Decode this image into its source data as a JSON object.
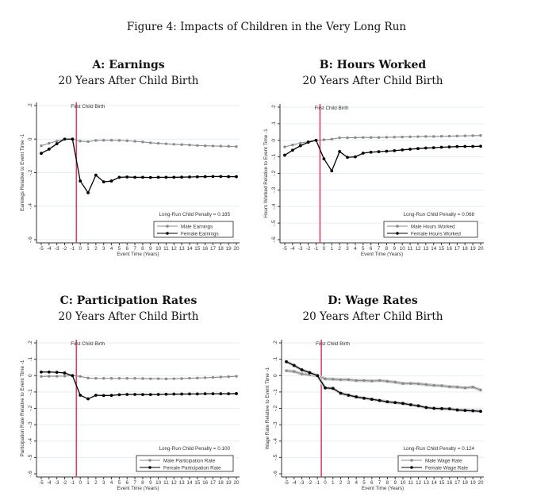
{
  "figure_title": "Figure 4: Impacts of Children in the Very Long Run",
  "chart_data": [
    {
      "id": "A",
      "type": "line",
      "title": "A: Earnings",
      "subtitle": "20 Years After Child Birth",
      "xlabel": "Event Time (Years)",
      "ylabel": "Earnings Relative to Event Time -1",
      "x": [
        -5,
        -4,
        -3,
        -2,
        -1,
        0,
        1,
        2,
        3,
        4,
        5,
        6,
        7,
        8,
        9,
        10,
        11,
        12,
        13,
        14,
        15,
        16,
        17,
        18,
        19,
        20
      ],
      "xlim": [
        -5,
        20
      ],
      "ylim": [
        -0.6,
        0.2
      ],
      "yticks": [
        0.2,
        0,
        -0.2,
        -0.4,
        -0.6
      ],
      "ytick_labels": [
        ".2",
        "0",
        "-.2",
        "-.4",
        "-.6"
      ],
      "grid": true,
      "event_line": {
        "x": -0.5,
        "label": "First Child Birth",
        "color": "#d9436b"
      },
      "annotation": "Long-Run Child Penalty = 0.185",
      "legend_position": "bottom-right",
      "series": [
        {
          "name": "Male Earnings",
          "color": "#8a8a8a",
          "band": false,
          "values": [
            -0.04,
            -0.025,
            -0.012,
            0.0,
            0.0,
            -0.012,
            -0.015,
            -0.008,
            -0.007,
            -0.007,
            -0.008,
            -0.01,
            -0.013,
            -0.017,
            -0.022,
            -0.025,
            -0.028,
            -0.031,
            -0.033,
            -0.035,
            -0.038,
            -0.04,
            -0.041,
            -0.042,
            -0.043,
            -0.045
          ]
        },
        {
          "name": "Female Earnings",
          "color": "#000000",
          "band": false,
          "values": [
            -0.085,
            -0.06,
            -0.028,
            0.0,
            0.0,
            -0.25,
            -0.32,
            -0.215,
            -0.255,
            -0.25,
            -0.228,
            -0.226,
            -0.228,
            -0.228,
            -0.229,
            -0.228,
            -0.228,
            -0.228,
            -0.227,
            -0.226,
            -0.225,
            -0.224,
            -0.223,
            -0.223,
            -0.224,
            -0.224
          ]
        }
      ]
    },
    {
      "id": "B",
      "type": "line",
      "title": "B: Hours Worked",
      "subtitle": "20 Years After Child Birth",
      "xlabel": "Event Time (Years)",
      "ylabel": "Hours Worked Relative to Event Time -1",
      "x": [
        -5,
        -4,
        -3,
        -2,
        -1,
        0,
        1,
        2,
        3,
        4,
        5,
        6,
        7,
        8,
        9,
        10,
        11,
        12,
        13,
        14,
        15,
        16,
        17,
        18,
        19,
        20
      ],
      "xlim": [
        -5,
        20
      ],
      "ylim": [
        -0.6,
        0.2
      ],
      "yticks": [
        0.2,
        0.1,
        0,
        -0.1,
        -0.2,
        -0.3,
        -0.4,
        -0.5,
        -0.6
      ],
      "ytick_labels": [
        ".2",
        ".1",
        "0",
        "-.1",
        "-.2",
        "-.3",
        "-.4",
        "-.5",
        "-.6"
      ],
      "grid": true,
      "event_line": {
        "x": -0.5,
        "label": "First Child Birth",
        "color": "#d9436b"
      },
      "annotation": "Long-Run Child Penalty = 0.068",
      "legend_position": "bottom-right",
      "series": [
        {
          "name": "Male Hours Worked",
          "color": "#8a8a8a",
          "band": false,
          "values": [
            -0.04,
            -0.028,
            -0.017,
            -0.008,
            0.0,
            0.003,
            0.007,
            0.015,
            0.015,
            0.016,
            0.017,
            0.017,
            0.017,
            0.018,
            0.019,
            0.02,
            0.021,
            0.022,
            0.023,
            0.023,
            0.024,
            0.025,
            0.026,
            0.027,
            0.028,
            0.029
          ]
        },
        {
          "name": "Female Hours Worked",
          "color": "#000000",
          "band": false,
          "values": [
            -0.09,
            -0.06,
            -0.033,
            -0.012,
            0.0,
            -0.112,
            -0.185,
            -0.068,
            -0.103,
            -0.1,
            -0.078,
            -0.072,
            -0.069,
            -0.066,
            -0.063,
            -0.058,
            -0.054,
            -0.05,
            -0.047,
            -0.045,
            -0.042,
            -0.04,
            -0.038,
            -0.037,
            -0.037,
            -0.036
          ]
        }
      ]
    },
    {
      "id": "C",
      "type": "line",
      "title": "C: Participation Rates",
      "subtitle": "20 Years After Child Birth",
      "xlabel": "Event Time (Years)",
      "ylabel": "Participation Rate Relative to Event Time -1",
      "x": [
        -5,
        -4,
        -3,
        -2,
        -1,
        0,
        1,
        2,
        3,
        4,
        5,
        6,
        7,
        8,
        9,
        10,
        11,
        12,
        13,
        14,
        15,
        16,
        17,
        18,
        19,
        20
      ],
      "xlim": [
        -5,
        20
      ],
      "ylim": [
        -0.6,
        0.2
      ],
      "yticks": [
        0.2,
        0.1,
        0,
        -0.1,
        -0.2,
        -0.3,
        -0.4,
        -0.5,
        -0.6
      ],
      "ytick_labels": [
        ".2",
        ".1",
        "0",
        "-.1",
        "-.2",
        "-.3",
        "-.4",
        "-.5",
        "-.6"
      ],
      "grid": true,
      "event_line": {
        "x": -0.5,
        "label": "First Child Birth",
        "color": "#d9436b"
      },
      "annotation": "Long-Run Child Penalty = 0.100",
      "legend_position": "bottom-right",
      "series": [
        {
          "name": "Male Participation Rate",
          "color": "#8a8a8a",
          "band": false,
          "values": [
            -0.005,
            -0.004,
            -0.004,
            -0.003,
            0.0,
            -0.005,
            -0.015,
            -0.017,
            -0.017,
            -0.017,
            -0.017,
            -0.017,
            -0.017,
            -0.018,
            -0.019,
            -0.019,
            -0.02,
            -0.019,
            -0.018,
            -0.016,
            -0.015,
            -0.013,
            -0.011,
            -0.009,
            -0.007,
            -0.004
          ]
        },
        {
          "name": "Female Participation Rate",
          "color": "#000000",
          "band": false,
          "values": [
            0.022,
            0.022,
            0.02,
            0.016,
            0.0,
            -0.12,
            -0.142,
            -0.12,
            -0.122,
            -0.121,
            -0.117,
            -0.115,
            -0.115,
            -0.116,
            -0.116,
            -0.115,
            -0.114,
            -0.113,
            -0.113,
            -0.112,
            -0.112,
            -0.111,
            -0.111,
            -0.111,
            -0.111,
            -0.11
          ]
        }
      ]
    },
    {
      "id": "D",
      "type": "line",
      "title": "D: Wage Rates",
      "subtitle": "20 Years After Child Birth",
      "xlabel": "Event Time (Years)",
      "ylabel": "Wage Rate Relative to Event Time -1",
      "x": [
        -5,
        -4,
        -3,
        -2,
        -1,
        0,
        1,
        2,
        3,
        4,
        5,
        6,
        7,
        8,
        9,
        10,
        11,
        12,
        13,
        14,
        15,
        16,
        17,
        18,
        19,
        20
      ],
      "xlim": [
        -5,
        20
      ],
      "ylim": [
        -0.6,
        0.2
      ],
      "yticks": [
        0.2,
        0.1,
        0,
        -0.1,
        -0.2,
        -0.3,
        -0.4,
        -0.5,
        -0.6
      ],
      "ytick_labels": [
        ".2",
        ".1",
        "0",
        "-.1",
        "-.2",
        "-.3",
        "-.4",
        "-.5",
        "-.6"
      ],
      "grid": true,
      "event_line": {
        "x": -0.5,
        "label": "First Child Birth",
        "color": "#d9436b"
      },
      "annotation": "Long-Run Child Penalty = 0.124",
      "legend_position": "bottom-right",
      "series": [
        {
          "name": "Male Wage Rate",
          "color": "#8a8a8a",
          "band": true,
          "values": [
            0.03,
            0.025,
            0.01,
            0.005,
            0.0,
            -0.02,
            -0.022,
            -0.025,
            -0.025,
            -0.03,
            -0.03,
            -0.033,
            -0.03,
            -0.035,
            -0.04,
            -0.048,
            -0.048,
            -0.05,
            -0.055,
            -0.06,
            -0.062,
            -0.068,
            -0.07,
            -0.075,
            -0.07,
            -0.088
          ]
        },
        {
          "name": "Female Wage Rate",
          "color": "#000000",
          "band": true,
          "values": [
            0.085,
            0.062,
            0.035,
            0.018,
            0.0,
            -0.075,
            -0.078,
            -0.108,
            -0.12,
            -0.13,
            -0.138,
            -0.145,
            -0.152,
            -0.16,
            -0.165,
            -0.17,
            -0.178,
            -0.185,
            -0.195,
            -0.2,
            -0.202,
            -0.203,
            -0.21,
            -0.213,
            -0.215,
            -0.218
          ]
        }
      ]
    }
  ]
}
